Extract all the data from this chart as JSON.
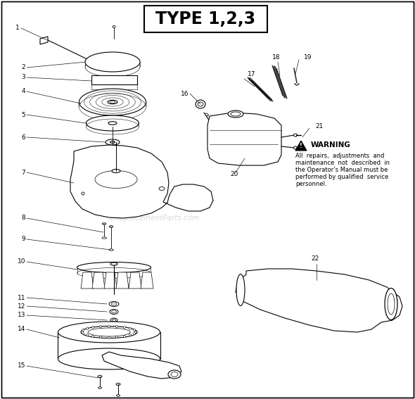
{
  "title": "TYPE 1,2,3",
  "bg_color": "#ffffff",
  "warning_title": "WARNING",
  "warning_text_lines": [
    "All  repairs,  adjustments  and",
    "maintenance  not  described  in",
    "the Operator’s Manual must be",
    "performed by qualified  service",
    "personnel."
  ],
  "watermark": "eReplacementParts.com",
  "fig_width": 5.9,
  "fig_height": 5.67,
  "dpi": 100
}
